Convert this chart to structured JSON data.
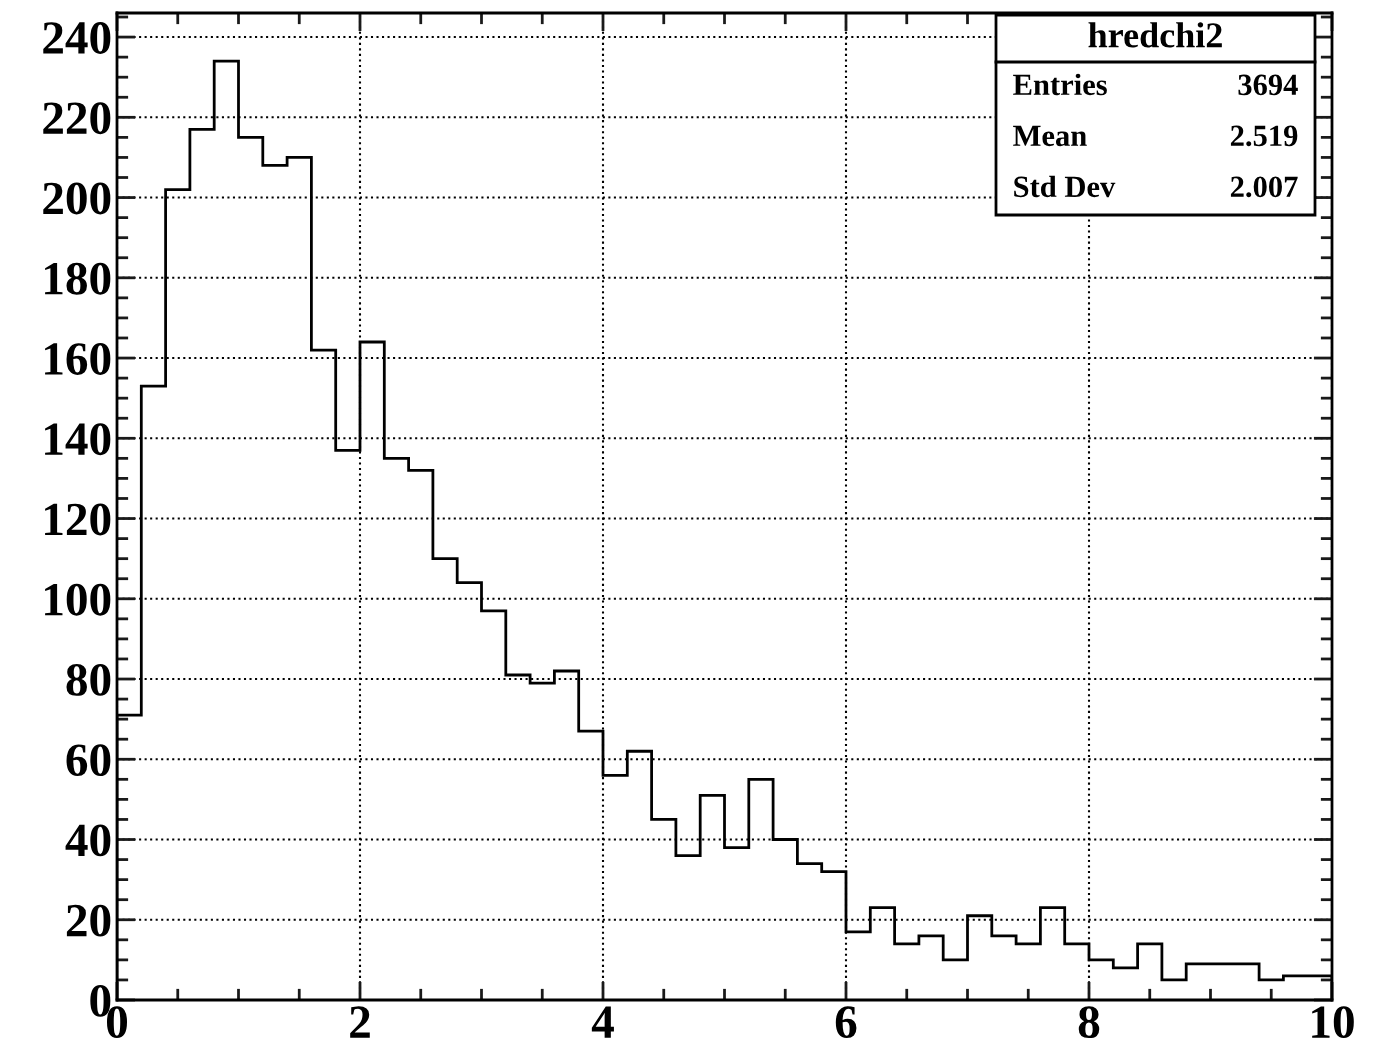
{
  "chart_data": {
    "type": "histogram",
    "bins": [
      0,
      0.2,
      0.4,
      0.6,
      0.8,
      1.0,
      1.2,
      1.4,
      1.6,
      1.8,
      2.0,
      2.2,
      2.4,
      2.6,
      2.8,
      3.0,
      3.2,
      3.4,
      3.6,
      3.8,
      4.0,
      4.2,
      4.4,
      4.6,
      4.8,
      5.0,
      5.2,
      5.4,
      5.6,
      5.8,
      6.0,
      6.2,
      6.4,
      6.6,
      6.8,
      7.0,
      7.2,
      7.4,
      7.6,
      7.8,
      8.0,
      8.2,
      8.4,
      8.6,
      8.8,
      9.0,
      9.2,
      9.4,
      9.6,
      9.8,
      10.0
    ],
    "values": [
      71,
      153,
      202,
      217,
      234,
      215,
      208,
      210,
      162,
      137,
      164,
      135,
      132,
      110,
      104,
      97,
      81,
      79,
      82,
      67,
      56,
      62,
      45,
      36,
      51,
      38,
      55,
      40,
      34,
      32,
      17,
      23,
      14,
      16,
      10,
      21,
      16,
      14,
      23,
      14,
      10,
      8,
      14,
      5,
      9,
      9,
      9,
      5,
      6,
      6
    ],
    "color": "#000000",
    "xlim": [
      0,
      10
    ],
    "xticks": [
      0,
      2,
      4,
      6,
      8,
      10
    ],
    "ylim": [
      0,
      246
    ],
    "yticks": [
      0,
      20,
      40,
      60,
      80,
      100,
      120,
      140,
      160,
      180,
      200,
      220,
      240
    ],
    "grid": true,
    "annotations": [
      "hredchi2",
      "Entries",
      "3694",
      "Mean",
      "2.519",
      "Std Dev",
      "2.007"
    ]
  }
}
